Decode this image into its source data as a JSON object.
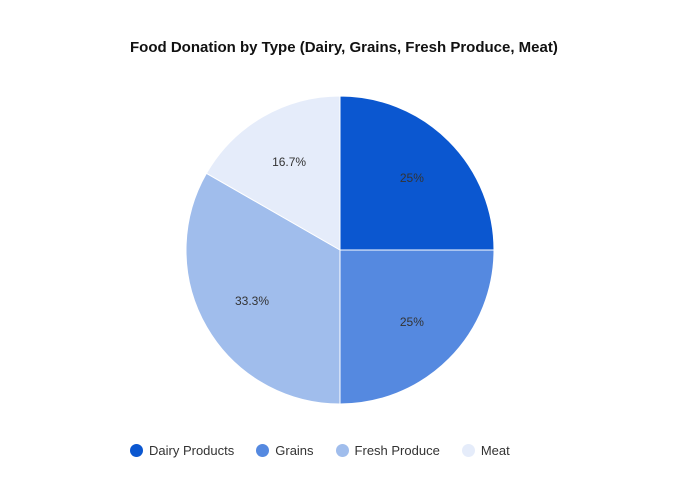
{
  "chart_data": {
    "type": "pie",
    "title": "Food Donation by Type (Dairy, Grains, Fresh Produce, Meat)",
    "categories": [
      "Dairy Products",
      "Grains",
      "Fresh Produce",
      "Meat"
    ],
    "values": [
      25,
      25,
      33.3,
      16.7
    ],
    "labels": [
      "25%",
      "25%",
      "33.3%",
      "16.7%"
    ],
    "colors": [
      "#0b57d0",
      "#5589e0",
      "#a0bdec",
      "#e5ecfa"
    ],
    "legend_position": "bottom-left",
    "start_angle": "12 o'clock",
    "direction": "clockwise"
  }
}
